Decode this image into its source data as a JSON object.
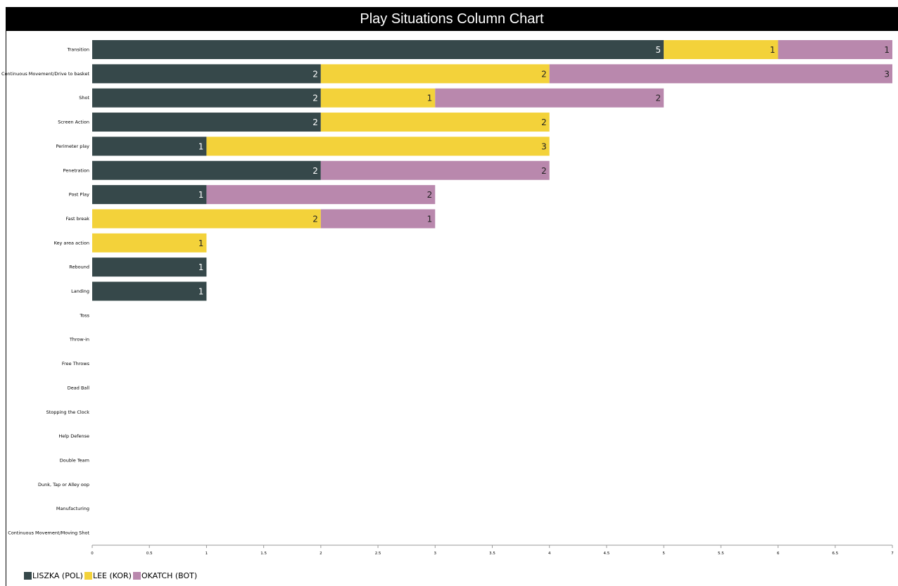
{
  "chart_data": {
    "type": "bar",
    "orientation": "horizontal",
    "stacked": true,
    "title": "Play Situations Column Chart",
    "categories": [
      "Transition",
      "Continuous Movement/Drive to basket",
      "Shot",
      "Screen Action",
      "Perimeter play",
      "Penetration",
      "Post Play",
      "Fast break",
      "Key area action",
      "Rebound",
      "Landing",
      "Toss",
      "Throw-in",
      "Free Throws",
      "Dead Ball",
      "Stopping the Clock",
      "Help Defense",
      "Double Team",
      "Dunk, Tap or Alley oop",
      "Manufacturing",
      "Continuous Movement/Moving Shot"
    ],
    "series": [
      {
        "name": "LISZKA (POL)",
        "color": "#36484a",
        "values": [
          5,
          2,
          2,
          2,
          1,
          2,
          1,
          0,
          0,
          1,
          1,
          0,
          0,
          0,
          0,
          0,
          0,
          0,
          0,
          0,
          0
        ]
      },
      {
        "name": "LEE (KOR)",
        "color": "#f3d23a",
        "values": [
          1,
          2,
          1,
          2,
          3,
          0,
          0,
          2,
          1,
          0,
          0,
          0,
          0,
          0,
          0,
          0,
          0,
          0,
          0,
          0,
          0
        ]
      },
      {
        "name": "OKATCH (BOT)",
        "color": "#b988ad",
        "values": [
          1,
          3,
          2,
          0,
          0,
          2,
          2,
          1,
          0,
          0,
          0,
          0,
          0,
          0,
          0,
          0,
          0,
          0,
          0,
          0,
          0
        ]
      }
    ],
    "xlim": [
      0,
      7
    ],
    "x_ticks": [
      "0",
      "0.5",
      "1",
      "1.5",
      "2",
      "2.5",
      "3",
      "3.5",
      "4",
      "4.5",
      "5",
      "5.5",
      "6",
      "6.5",
      "7"
    ],
    "grid": false,
    "legend_position": "bottom-left"
  }
}
